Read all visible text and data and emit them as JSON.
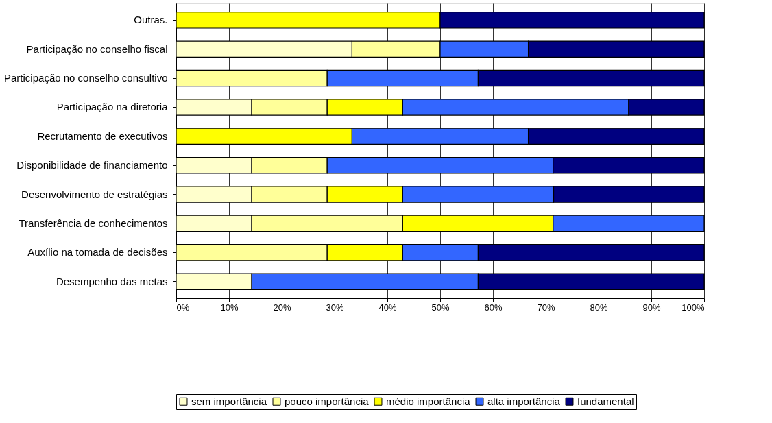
{
  "chart_data": {
    "type": "bar",
    "orientation": "horizontal",
    "stacked": true,
    "categories": [
      "Outras.",
      "Participação no conselho fiscal",
      "Participação no conselho consultivo",
      "Participação na diretoria",
      "Recrutamento de executivos",
      "Disponibilidade de financiamento",
      "Desenvolvimento de estratégias",
      "Transferência de conhecimentos",
      "Auxílio na tomada de decisões",
      "Desempenho das metas"
    ],
    "series": [
      {
        "name": "sem importância",
        "color": "#ffffcc",
        "values": [
          null,
          33.3,
          null,
          14.3,
          null,
          14.3,
          14.3,
          14.3,
          null,
          14.3
        ]
      },
      {
        "name": "pouco importância",
        "color": "#ffff99",
        "values": [
          null,
          16.7,
          28.6,
          14.3,
          null,
          14.3,
          14.3,
          28.6,
          28.6,
          null
        ]
      },
      {
        "name": "médio importância",
        "color": "#ffff00",
        "values": [
          50,
          null,
          null,
          14.3,
          33.3,
          null,
          14.3,
          28.5,
          14.3,
          null
        ]
      },
      {
        "name": "alta importância",
        "color": "#3366ff",
        "values": [
          null,
          16.7,
          28.6,
          42.8,
          33.4,
          42.8,
          28.6,
          28.6,
          14.3,
          42.9
        ]
      },
      {
        "name": "fundamental",
        "color": "#000080",
        "values": [
          50,
          33.3,
          42.8,
          14.3,
          33.3,
          28.6,
          28.5,
          null,
          42.8,
          42.8
        ]
      }
    ],
    "xlim": [
      0,
      100
    ],
    "xticks": [
      {
        "value": 0,
        "label": "0%"
      },
      {
        "value": 10,
        "label": "10%"
      },
      {
        "value": 20,
        "label": "20%"
      },
      {
        "value": 30,
        "label": "30%"
      },
      {
        "value": 40,
        "label": "40%"
      },
      {
        "value": 50,
        "label": "50%"
      },
      {
        "value": 60,
        "label": "60%"
      },
      {
        "value": 70,
        "label": "70%"
      },
      {
        "value": 80,
        "label": "80%"
      },
      {
        "value": 90,
        "label": "90%"
      },
      {
        "value": 100,
        "label": "100%"
      }
    ],
    "grid": "x",
    "legend": "bottom"
  }
}
